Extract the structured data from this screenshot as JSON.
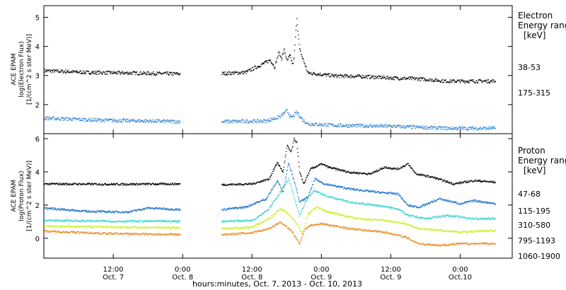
{
  "chart_data": [
    {
      "type": "scatter",
      "panel": "electron",
      "ylabel_lines": [
        "ACE EPAM",
        "log(Electron Flux)",
        "[1/(cm^2 s ster MeV)]"
      ],
      "ylim": [
        1.0,
        5.4
      ],
      "yticks": [
        2,
        3,
        4,
        5
      ],
      "legend_title": [
        "Electron",
        "Energy range",
        "[keV]"
      ],
      "series": [
        {
          "name": "38-53",
          "color": "#000000",
          "segments": [
            {
              "x": [
                0.0,
                0.3,
                0.6,
                0.98
              ],
              "y": [
                3.18,
                3.12,
                3.1,
                3.07
              ]
            },
            {
              "x": [
                1.28,
                1.45,
                1.55,
                1.63,
                1.66,
                1.69,
                1.71,
                1.73,
                1.75,
                1.77,
                1.79,
                1.8,
                1.81,
                1.82,
                1.83,
                1.84,
                1.87,
                1.9,
                2.1,
                2.3,
                2.5,
                2.7,
                2.9,
                3.25
              ],
              "y": [
                3.08,
                3.12,
                3.35,
                3.55,
                3.3,
                3.8,
                3.6,
                3.9,
                3.5,
                3.7,
                3.4,
                3.6,
                4.3,
                5.0,
                4.4,
                3.9,
                3.5,
                3.1,
                3.0,
                2.98,
                2.93,
                2.9,
                2.82,
                2.82
              ]
            }
          ]
        },
        {
          "name": "175-315",
          "color": "#2a7fd0",
          "segments": [
            {
              "x": [
                0.0,
                0.4,
                0.98
              ],
              "y": [
                1.55,
                1.48,
                1.43
              ]
            },
            {
              "x": [
                1.28,
                1.6,
                1.7,
                1.75,
                1.78,
                1.82,
                1.86,
                1.9,
                2.1,
                2.5,
                2.9,
                3.25
              ],
              "y": [
                1.43,
                1.45,
                1.6,
                1.8,
                1.55,
                1.75,
                1.5,
                1.35,
                1.3,
                1.27,
                1.2,
                1.2
              ]
            }
          ]
        }
      ]
    },
    {
      "type": "scatter",
      "panel": "proton",
      "ylabel_lines": [
        "ACE EPAM",
        "log(Proton Flux)",
        "[1/(cm^2 s ster MeV)]"
      ],
      "ylim": [
        -1.2,
        6.3
      ],
      "yticks": [
        0,
        2,
        4,
        6
      ],
      "legend_title": [
        "Proton",
        "Energy range",
        "[keV]"
      ],
      "series": [
        {
          "name": "47-68",
          "color": "#000000",
          "segments": [
            {
              "x": [
                0.0,
                0.5,
                0.98
              ],
              "y": [
                3.3,
                3.28,
                3.3
              ]
            },
            {
              "x": [
                1.28,
                1.5,
                1.62,
                1.68,
                1.72,
                1.75,
                1.78,
                1.8,
                1.82,
                1.84,
                1.87,
                1.92,
                2.0,
                2.05,
                2.2,
                2.35,
                2.45,
                2.55,
                2.62,
                2.68,
                2.8,
                2.95,
                3.1,
                3.25
              ],
              "y": [
                3.25,
                3.3,
                3.6,
                4.6,
                4.0,
                5.6,
                5.2,
                6.0,
                5.8,
                4.0,
                3.3,
                4.2,
                4.5,
                4.3,
                4.0,
                3.9,
                4.3,
                4.2,
                4.5,
                3.9,
                3.7,
                3.3,
                3.5,
                3.4
              ]
            }
          ]
        },
        {
          "name": "115-195",
          "color": "#1a6fc9",
          "segments": [
            {
              "x": [
                0.0,
                0.3,
                0.6,
                0.75,
                0.98
              ],
              "y": [
                1.85,
                1.65,
                1.6,
                1.85,
                1.75
              ]
            },
            {
              "x": [
                1.28,
                1.45,
                1.6,
                1.68,
                1.72,
                1.76,
                1.8,
                1.84,
                1.9,
                1.95,
                2.02,
                2.2,
                2.4,
                2.55,
                2.62,
                2.7,
                2.85,
                3.0,
                3.1,
                3.25
              ],
              "y": [
                1.75,
                1.9,
                2.4,
                3.5,
                2.8,
                4.6,
                3.5,
                2.2,
                2.5,
                3.6,
                3.3,
                3.0,
                2.8,
                2.7,
                2.0,
                1.9,
                2.4,
                2.1,
                2.3,
                2.1
              ]
            }
          ]
        },
        {
          "name": "310-580",
          "color": "#33d4cf",
          "segments": [
            {
              "x": [
                0.0,
                0.5,
                0.98
              ],
              "y": [
                1.1,
                1.05,
                1.05
              ]
            },
            {
              "x": [
                1.28,
                1.5,
                1.62,
                1.7,
                1.76,
                1.8,
                1.84,
                1.9,
                1.95,
                2.02,
                2.2,
                2.4,
                2.55,
                2.62,
                2.75,
                2.9,
                3.1,
                3.25
              ],
              "y": [
                1.05,
                1.1,
                1.8,
                2.8,
                3.6,
                2.5,
                1.4,
                2.5,
                2.9,
                2.6,
                2.2,
                2.0,
                1.8,
                1.4,
                1.2,
                1.4,
                1.2,
                1.2
              ]
            }
          ]
        },
        {
          "name": "795-1193",
          "color": "#c7f01f",
          "segments": [
            {
              "x": [
                0.0,
                0.5,
                0.98
              ],
              "y": [
                0.75,
                0.7,
                0.65
              ]
            },
            {
              "x": [
                1.28,
                1.5,
                1.62,
                1.7,
                1.76,
                1.82,
                1.86,
                1.9,
                1.96,
                2.05,
                2.25,
                2.45,
                2.6,
                2.7,
                2.85,
                3.0,
                3.25
              ],
              "y": [
                0.6,
                0.7,
                1.2,
                1.8,
                1.5,
                0.9,
                0.3,
                1.5,
                1.9,
                1.6,
                1.2,
                1.1,
                0.9,
                0.6,
                0.5,
                0.4,
                0.5
              ]
            }
          ]
        },
        {
          "name": "1060-1900",
          "color": "#e8881f",
          "segments": [
            {
              "x": [
                0.0,
                0.5,
                0.98
              ],
              "y": [
                0.45,
                0.3,
                0.25
              ]
            },
            {
              "x": [
                1.28,
                1.5,
                1.62,
                1.7,
                1.78,
                1.84,
                1.88,
                1.92,
                2.0,
                2.2,
                2.45,
                2.6,
                2.7,
                2.85,
                3.0,
                3.25
              ],
              "y": [
                0.25,
                0.35,
                0.6,
                1.0,
                0.5,
                -0.3,
                0.6,
                0.8,
                0.9,
                0.6,
                0.4,
                0.1,
                -0.3,
                -0.4,
                -0.3,
                -0.3
              ]
            }
          ]
        }
      ]
    }
  ],
  "x_axis": {
    "ticks": [
      {
        "t": 0.5,
        "line1": "12:00",
        "line2": "Oct. 7"
      },
      {
        "t": 1.0,
        "line1": "0:00",
        "line2": "Oct. 8"
      },
      {
        "t": 1.5,
        "line1": "12:00",
        "line2": "Oct. 8"
      },
      {
        "t": 2.0,
        "line1": "0:00",
        "line2": "Oct. 9"
      },
      {
        "t": 2.5,
        "line1": "12:00",
        "line2": "Oct. 9"
      },
      {
        "t": 3.0,
        "line1": "0:00",
        "line2": "Oct.10"
      }
    ],
    "xlim": [
      0.0,
      3.375
    ],
    "xlabel": "hours:minutes, Oct. 7, 2013 - Oct. 10, 2013"
  }
}
